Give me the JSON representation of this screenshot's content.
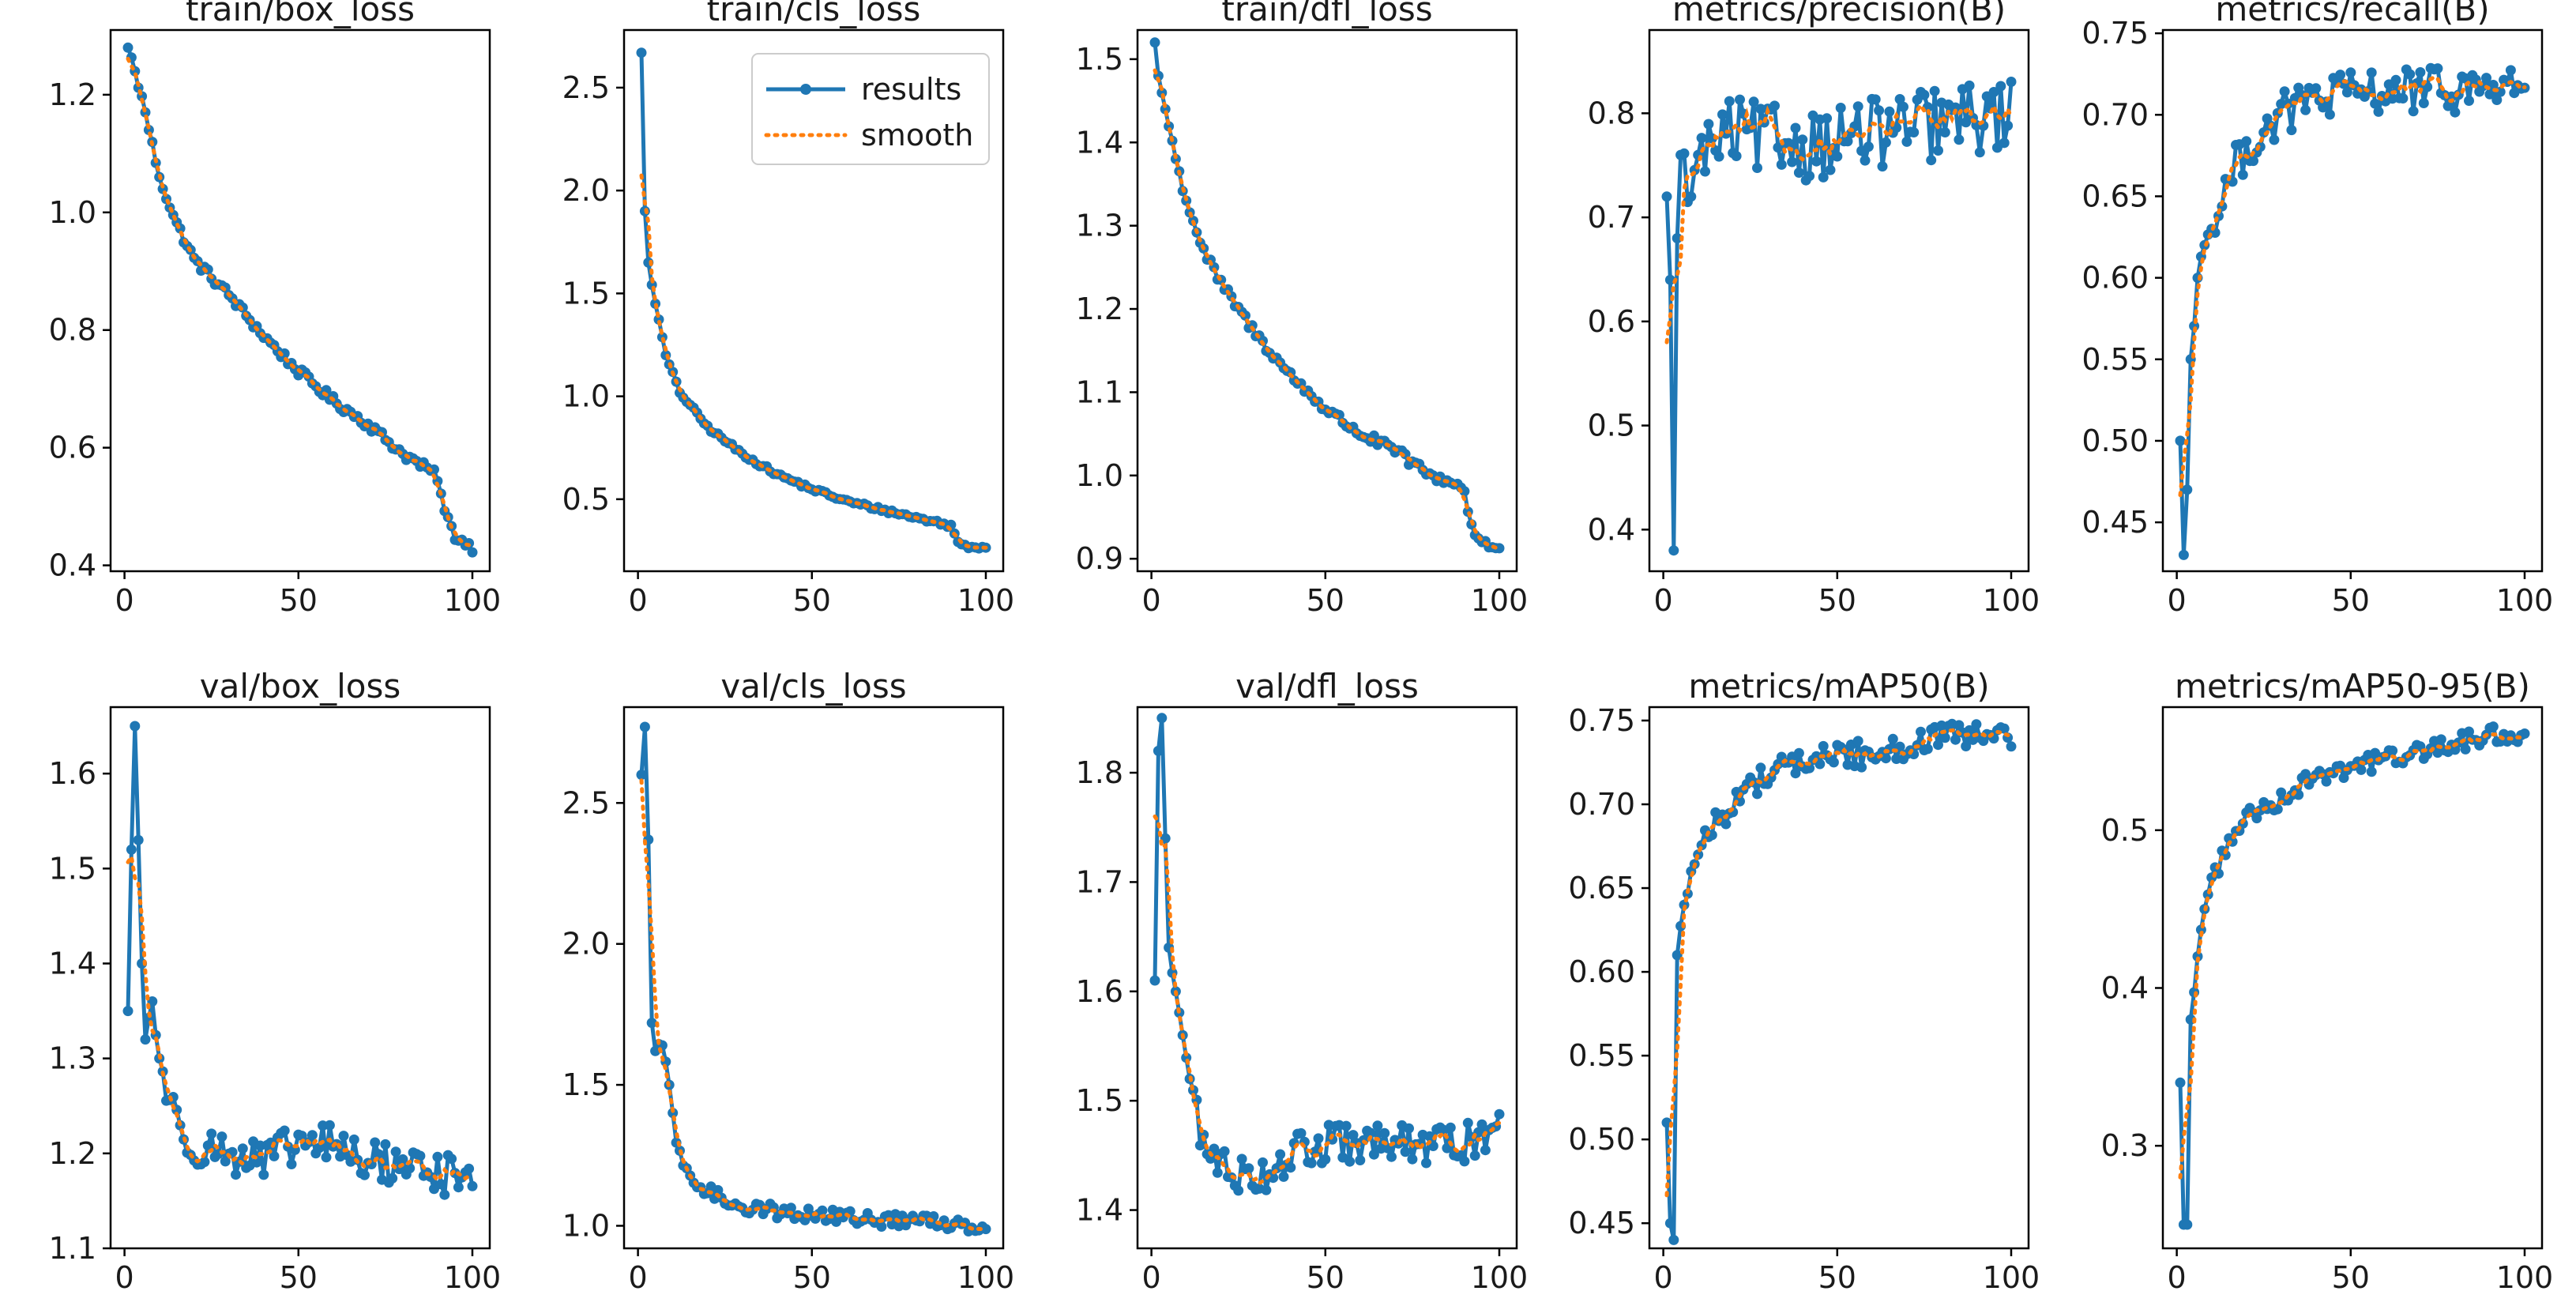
{
  "colors": {
    "results": "#1f77b4",
    "smooth": "#ff7f0e",
    "axes": "#000000",
    "text": "#1a1a1a"
  },
  "legend": {
    "results_label": "results",
    "smooth_label": "smooth",
    "location": "upper-right",
    "panel": "train/cls_loss"
  },
  "chart_data": [
    {
      "type": "line",
      "title": "train/box_loss",
      "grid": false,
      "xlim": [
        -4,
        105
      ],
      "ylim": [
        0.39,
        1.31
      ],
      "xticks": [
        0,
        50,
        100
      ],
      "xtick_labels": [
        "0",
        "50",
        "100"
      ],
      "yticks": [
        0.4,
        0.6,
        0.8,
        1.0,
        1.2
      ],
      "ytick_labels": [
        "0.4",
        "0.6",
        "0.8",
        "1.0",
        "1.2"
      ],
      "kind": "decay",
      "anchors": [
        [
          1,
          1.28
        ],
        [
          3,
          1.24
        ],
        [
          6,
          1.17
        ],
        [
          10,
          1.06
        ],
        [
          15,
          0.98
        ],
        [
          20,
          0.92
        ],
        [
          30,
          0.86
        ],
        [
          40,
          0.79
        ],
        [
          50,
          0.73
        ],
        [
          60,
          0.68
        ],
        [
          70,
          0.64
        ],
        [
          80,
          0.59
        ],
        [
          88,
          0.56
        ],
        [
          90,
          0.55
        ],
        [
          92,
          0.49
        ],
        [
          95,
          0.45
        ],
        [
          100,
          0.43
        ]
      ],
      "noise": 0.008
    },
    {
      "type": "line",
      "title": "train/cls_loss",
      "grid": false,
      "xlim": [
        -4,
        105
      ],
      "ylim": [
        0.15,
        2.78
      ],
      "xticks": [
        0,
        50,
        100
      ],
      "xtick_labels": [
        "0",
        "50",
        "100"
      ],
      "yticks": [
        0.5,
        1.0,
        1.5,
        2.0,
        2.5
      ],
      "ytick_labels": [
        "0.5",
        "1.0",
        "1.5",
        "2.0",
        "2.5"
      ],
      "kind": "decay",
      "anchors": [
        [
          1,
          2.67
        ],
        [
          2,
          1.9
        ],
        [
          3,
          1.65
        ],
        [
          5,
          1.45
        ],
        [
          8,
          1.2
        ],
        [
          12,
          1.02
        ],
        [
          20,
          0.85
        ],
        [
          30,
          0.72
        ],
        [
          40,
          0.62
        ],
        [
          50,
          0.55
        ],
        [
          60,
          0.49
        ],
        [
          70,
          0.45
        ],
        [
          80,
          0.41
        ],
        [
          88,
          0.38
        ],
        [
          90,
          0.37
        ],
        [
          92,
          0.29
        ],
        [
          95,
          0.27
        ],
        [
          100,
          0.27
        ]
      ],
      "noise": 0.01
    },
    {
      "type": "line",
      "title": "train/dfl_loss",
      "grid": false,
      "xlim": [
        -4,
        105
      ],
      "ylim": [
        0.885,
        1.535
      ],
      "xticks": [
        0,
        50,
        100
      ],
      "xtick_labels": [
        "0",
        "50",
        "100"
      ],
      "yticks": [
        0.9,
        1.0,
        1.1,
        1.2,
        1.3,
        1.4,
        1.5
      ],
      "ytick_labels": [
        "0.9",
        "1.0",
        "1.1",
        "1.2",
        "1.3",
        "1.4",
        "1.5"
      ],
      "kind": "decay",
      "anchors": [
        [
          1,
          1.52
        ],
        [
          2,
          1.48
        ],
        [
          4,
          1.44
        ],
        [
          7,
          1.38
        ],
        [
          10,
          1.33
        ],
        [
          15,
          1.27
        ],
        [
          20,
          1.23
        ],
        [
          30,
          1.17
        ],
        [
          40,
          1.12
        ],
        [
          50,
          1.08
        ],
        [
          60,
          1.05
        ],
        [
          70,
          1.03
        ],
        [
          80,
          1.0
        ],
        [
          88,
          0.99
        ],
        [
          90,
          0.98
        ],
        [
          92,
          0.94
        ],
        [
          95,
          0.92
        ],
        [
          100,
          0.91
        ]
      ],
      "noise": 0.006
    },
    {
      "type": "line",
      "title": "metrics/precision(B)",
      "grid": false,
      "xlim": [
        -4,
        105
      ],
      "ylim": [
        0.36,
        0.88
      ],
      "xticks": [
        0,
        50,
        100
      ],
      "xtick_labels": [
        "0",
        "50",
        "100"
      ],
      "yticks": [
        0.4,
        0.5,
        0.6,
        0.7,
        0.8
      ],
      "ytick_labels": [
        "0.4",
        "0.5",
        "0.6",
        "0.7",
        "0.8"
      ],
      "kind": "noisy",
      "anchors": [
        [
          1,
          0.72
        ],
        [
          2,
          0.64
        ],
        [
          3,
          0.38
        ],
        [
          4,
          0.68
        ],
        [
          5,
          0.76
        ],
        [
          8,
          0.72
        ],
        [
          10,
          0.76
        ],
        [
          20,
          0.78
        ],
        [
          40,
          0.77
        ],
        [
          60,
          0.78
        ],
        [
          80,
          0.79
        ],
        [
          100,
          0.8
        ]
      ],
      "noise": 0.035
    },
    {
      "type": "line",
      "title": "metrics/recall(B)",
      "grid": false,
      "xlim": [
        -4,
        105
      ],
      "ylim": [
        0.42,
        0.752
      ],
      "xticks": [
        0,
        50,
        100
      ],
      "xtick_labels": [
        "0",
        "50",
        "100"
      ],
      "yticks": [
        0.45,
        0.5,
        0.55,
        0.6,
        0.65,
        0.7,
        0.75
      ],
      "ytick_labels": [
        "0.45",
        "0.50",
        "0.55",
        "0.60",
        "0.65",
        "0.70",
        "0.75"
      ],
      "kind": "noisy",
      "anchors": [
        [
          1,
          0.5
        ],
        [
          2,
          0.43
        ],
        [
          3,
          0.47
        ],
        [
          4,
          0.55
        ],
        [
          6,
          0.6
        ],
        [
          8,
          0.62
        ],
        [
          10,
          0.63
        ],
        [
          15,
          0.66
        ],
        [
          20,
          0.68
        ],
        [
          30,
          0.7
        ],
        [
          40,
          0.71
        ],
        [
          60,
          0.715
        ],
        [
          80,
          0.715
        ],
        [
          100,
          0.72
        ]
      ],
      "noise": 0.014
    },
    {
      "type": "line",
      "title": "val/box_loss",
      "grid": false,
      "xlim": [
        -4,
        105
      ],
      "ylim": [
        1.1,
        1.67
      ],
      "xticks": [
        0,
        50,
        100
      ],
      "xtick_labels": [
        "0",
        "50",
        "100"
      ],
      "yticks": [
        1.1,
        1.2,
        1.3,
        1.4,
        1.5,
        1.6
      ],
      "ytick_labels": [
        "1.1",
        "1.2",
        "1.3",
        "1.4",
        "1.5",
        "1.6"
      ],
      "kind": "noisy",
      "anchors": [
        [
          1,
          1.35
        ],
        [
          2,
          1.52
        ],
        [
          3,
          1.65
        ],
        [
          4,
          1.53
        ],
        [
          5,
          1.4
        ],
        [
          6,
          1.32
        ],
        [
          8,
          1.36
        ],
        [
          10,
          1.3
        ],
        [
          12,
          1.27
        ],
        [
          15,
          1.23
        ],
        [
          20,
          1.21
        ],
        [
          30,
          1.2
        ],
        [
          40,
          1.19
        ],
        [
          50,
          1.21
        ],
        [
          60,
          1.21
        ],
        [
          70,
          1.19
        ],
        [
          80,
          1.19
        ],
        [
          90,
          1.18
        ],
        [
          100,
          1.17
        ]
      ],
      "noise": 0.022
    },
    {
      "type": "line",
      "title": "val/cls_loss",
      "grid": false,
      "xlim": [
        -4,
        105
      ],
      "ylim": [
        0.92,
        2.84
      ],
      "xticks": [
        0,
        50,
        100
      ],
      "xtick_labels": [
        "0",
        "50",
        "100"
      ],
      "yticks": [
        1.0,
        1.5,
        2.0,
        2.5
      ],
      "ytick_labels": [
        "1.0",
        "1.5",
        "2.0",
        "2.5"
      ],
      "kind": "noisy",
      "anchors": [
        [
          1,
          2.6
        ],
        [
          2,
          2.77
        ],
        [
          3,
          2.37
        ],
        [
          4,
          1.72
        ],
        [
          5,
          1.62
        ],
        [
          7,
          1.64
        ],
        [
          9,
          1.5
        ],
        [
          11,
          1.3
        ],
        [
          14,
          1.18
        ],
        [
          20,
          1.12
        ],
        [
          30,
          1.07
        ],
        [
          40,
          1.05
        ],
        [
          50,
          1.04
        ],
        [
          60,
          1.03
        ],
        [
          70,
          1.02
        ],
        [
          80,
          1.02
        ],
        [
          90,
          1.01
        ],
        [
          100,
          1.0
        ]
      ],
      "noise": 0.025
    },
    {
      "type": "line",
      "title": "val/dfl_loss",
      "grid": false,
      "xlim": [
        -4,
        105
      ],
      "ylim": [
        1.365,
        1.86
      ],
      "xticks": [
        0,
        50,
        100
      ],
      "xtick_labels": [
        "0",
        "50",
        "100"
      ],
      "yticks": [
        1.4,
        1.5,
        1.6,
        1.7,
        1.8
      ],
      "ytick_labels": [
        "1.4",
        "1.5",
        "1.6",
        "1.7",
        "1.8"
      ],
      "kind": "noisy",
      "anchors": [
        [
          1,
          1.61
        ],
        [
          2,
          1.82
        ],
        [
          3,
          1.85
        ],
        [
          4,
          1.74
        ],
        [
          5,
          1.64
        ],
        [
          7,
          1.6
        ],
        [
          9,
          1.56
        ],
        [
          12,
          1.5
        ],
        [
          15,
          1.46
        ],
        [
          20,
          1.44
        ],
        [
          30,
          1.43
        ],
        [
          40,
          1.45
        ],
        [
          50,
          1.46
        ],
        [
          60,
          1.46
        ],
        [
          70,
          1.46
        ],
        [
          80,
          1.46
        ],
        [
          90,
          1.46
        ],
        [
          100,
          1.48
        ]
      ],
      "noise": 0.018
    },
    {
      "type": "line",
      "title": "metrics/mAP50(B)",
      "grid": false,
      "xlim": [
        -4,
        105
      ],
      "ylim": [
        0.435,
        0.758
      ],
      "xticks": [
        0,
        50,
        100
      ],
      "xtick_labels": [
        "0",
        "50",
        "100"
      ],
      "yticks": [
        0.45,
        0.5,
        0.55,
        0.6,
        0.65,
        0.7,
        0.75
      ],
      "ytick_labels": [
        "0.45",
        "0.50",
        "0.55",
        "0.60",
        "0.65",
        "0.70",
        "0.75"
      ],
      "kind": "noisy",
      "anchors": [
        [
          1,
          0.51
        ],
        [
          2,
          0.45
        ],
        [
          3,
          0.44
        ],
        [
          4,
          0.61
        ],
        [
          6,
          0.64
        ],
        [
          8,
          0.66
        ],
        [
          10,
          0.67
        ],
        [
          15,
          0.69
        ],
        [
          20,
          0.7
        ],
        [
          30,
          0.72
        ],
        [
          40,
          0.725
        ],
        [
          50,
          0.73
        ],
        [
          60,
          0.73
        ],
        [
          70,
          0.735
        ],
        [
          80,
          0.74
        ],
        [
          90,
          0.74
        ],
        [
          100,
          0.74
        ]
      ],
      "noise": 0.008
    },
    {
      "type": "line",
      "title": "metrics/mAP50-95(B)",
      "grid": false,
      "xlim": [
        -4,
        105
      ],
      "ylim": [
        0.235,
        0.578
      ],
      "xticks": [
        0,
        50,
        100
      ],
      "xtick_labels": [
        "0",
        "50",
        "100"
      ],
      "yticks": [
        0.3,
        0.4,
        0.5
      ],
      "ytick_labels": [
        "0.3",
        "0.4",
        "0.5"
      ],
      "kind": "noisy",
      "anchors": [
        [
          1,
          0.34
        ],
        [
          2,
          0.25
        ],
        [
          3,
          0.25
        ],
        [
          4,
          0.38
        ],
        [
          6,
          0.42
        ],
        [
          8,
          0.45
        ],
        [
          10,
          0.47
        ],
        [
          15,
          0.49
        ],
        [
          20,
          0.51
        ],
        [
          30,
          0.52
        ],
        [
          40,
          0.535
        ],
        [
          50,
          0.54
        ],
        [
          60,
          0.545
        ],
        [
          70,
          0.55
        ],
        [
          80,
          0.555
        ],
        [
          90,
          0.56
        ],
        [
          100,
          0.56
        ]
      ],
      "noise": 0.006
    }
  ]
}
